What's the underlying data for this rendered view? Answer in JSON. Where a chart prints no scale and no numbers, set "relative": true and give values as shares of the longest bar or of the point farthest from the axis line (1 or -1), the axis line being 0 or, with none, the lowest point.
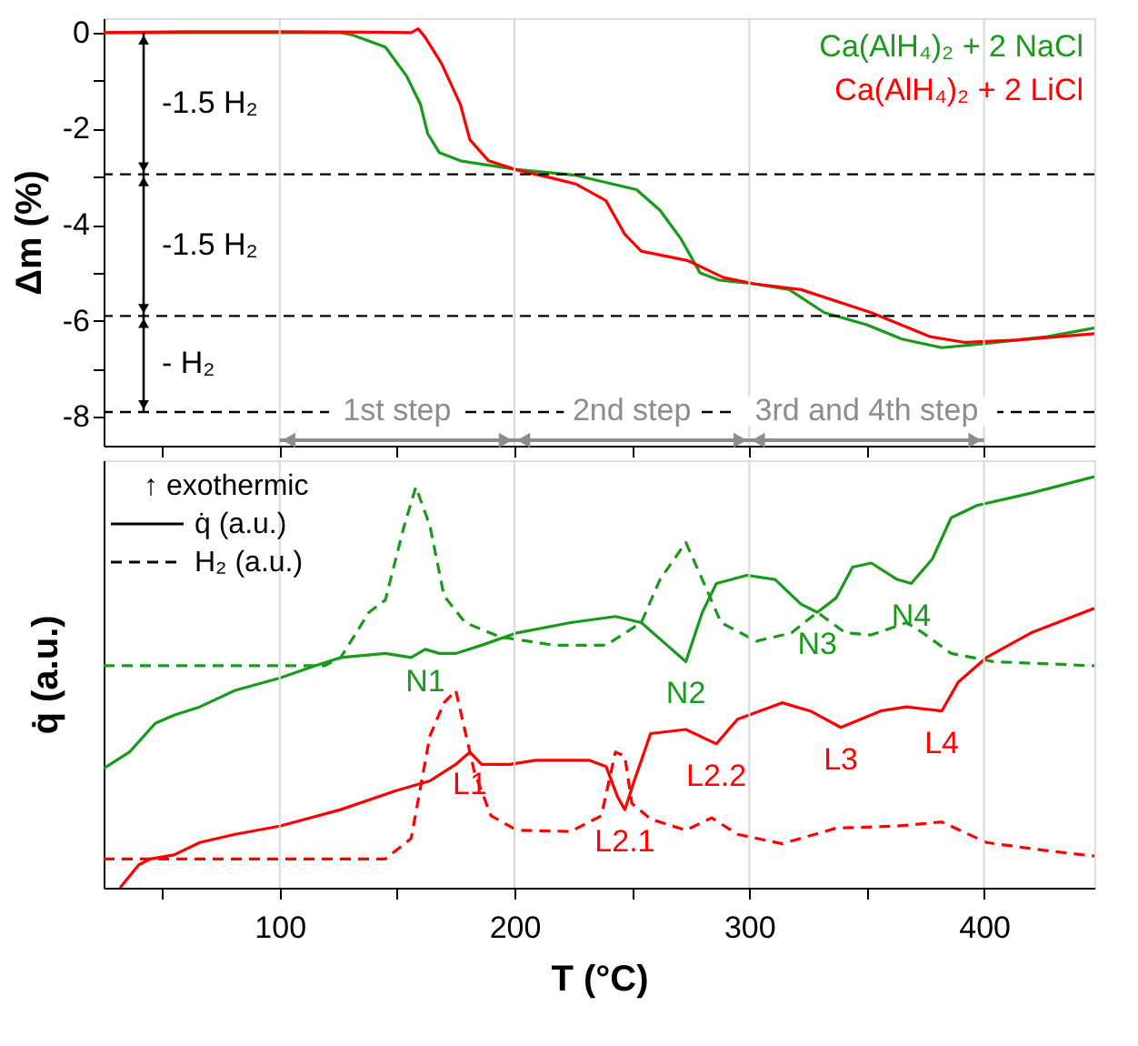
{
  "chart_data": [
    {
      "type": "line",
      "ylabel": "Δm (%)",
      "xlim": [
        25,
        447
      ],
      "xticks": [
        {
          "value": 50,
          "label": null
        },
        100,
        {
          "value": 150,
          "label": null
        },
        200,
        {
          "value": 250,
          "label": null
        },
        300,
        {
          "value": 350,
          "label": null
        },
        400
      ],
      "ylim": [
        -8.6,
        0.3
      ],
      "yticks": [
        0,
        {
          "value": -1,
          "label": null
        },
        -2,
        {
          "value": -3,
          "label": null
        },
        -4,
        {
          "value": -5,
          "label": null
        },
        -6,
        {
          "value": -7,
          "label": null
        },
        -8
      ],
      "tick_labels": "y",
      "grid": "x",
      "legend": "top right",
      "series": [
        {
          "name": "Ca(AlH₄)₂ + 2 NaCl",
          "color": "#1a9a1a",
          "line_style": "solid",
          "x": [
            25,
            100,
            126,
            131,
            145,
            154,
            160,
            163,
            168,
            177,
            201,
            226,
            252,
            262,
            271,
            279,
            287,
            302,
            317,
            332,
            350,
            365,
            382,
            399,
            427,
            447
          ],
          "values": [
            0,
            0,
            0,
            -0.05,
            -0.3,
            -0.9,
            -1.5,
            -2.1,
            -2.5,
            -2.67,
            -2.85,
            -2.97,
            -3.27,
            -3.7,
            -4.3,
            -5.0,
            -5.15,
            -5.23,
            -5.35,
            -5.83,
            -6.08,
            -6.38,
            -6.56,
            -6.48,
            -6.33,
            -6.15
          ]
        },
        {
          "name": "Ca(AlH₄)₂ + 2 LiCl",
          "color": "#ff0000",
          "line_style": "solid",
          "x": [
            25,
            60,
            100,
            140,
            156,
            159,
            162,
            169,
            177,
            181,
            189,
            201,
            217,
            226,
            239,
            247,
            254,
            274,
            289,
            302,
            322,
            352,
            377,
            392,
            414,
            447
          ],
          "values": [
            0,
            0.02,
            0.02,
            0.01,
            0,
            0.08,
            -0.1,
            -0.65,
            -1.5,
            -2.23,
            -2.67,
            -2.86,
            -3.04,
            -3.15,
            -3.5,
            -4.2,
            -4.55,
            -4.75,
            -5.1,
            -5.23,
            -5.35,
            -5.83,
            -6.33,
            -6.45,
            -6.4,
            -6.27
          ]
        }
      ],
      "ref_lines": [
        {
          "axis": "y",
          "value": -2.95,
          "color": "#000000",
          "line_style": "dashed"
        },
        {
          "axis": "y",
          "value": -5.9,
          "color": "#000000",
          "line_style": "dashed"
        },
        {
          "axis": "y",
          "value": -7.9,
          "color": "#000000",
          "line_style": "dashed"
        }
      ],
      "annotations": [
        "-1.5 H₂",
        "-1.5 H₂",
        "- H₂",
        "1st step",
        "2nd step",
        "3rd and 4th step"
      ]
    },
    {
      "type": "line",
      "relative": true,
      "xlabel": "T (°C)",
      "ylabel": "q̇ (a.u.)",
      "xlim": [
        25,
        447
      ],
      "xticks": [
        {
          "value": 50,
          "label": null
        },
        100,
        {
          "value": 150,
          "label": null
        },
        200,
        {
          "value": 250,
          "label": null
        },
        300,
        {
          "value": 350,
          "label": null
        },
        400
      ],
      "tick_labels": "x",
      "grid": "x",
      "series": [
        {
          "color": "#1a9a1a",
          "line_style": "solid",
          "x": [
            25,
            36,
            47,
            55,
            66,
            81,
            100,
            115,
            126,
            145,
            156,
            162,
            168,
            175,
            186,
            201,
            224,
            243,
            254,
            265,
            273,
            280,
            286,
            299,
            311,
            322,
            329,
            337,
            344,
            352,
            363,
            369,
            378,
            386,
            397,
            420,
            447
          ],
          "values": [
            0.29,
            0.33,
            0.4,
            0.42,
            0.44,
            0.48,
            0.51,
            0.54,
            0.56,
            0.57,
            0.56,
            0.58,
            0.57,
            0.57,
            0.59,
            0.62,
            0.645,
            0.66,
            0.645,
            0.59,
            0.55,
            0.67,
            0.74,
            0.76,
            0.75,
            0.69,
            0.67,
            0.705,
            0.78,
            0.79,
            0.75,
            0.74,
            0.8,
            0.9,
            0.93,
            0.96,
            1.0
          ]
        },
        {
          "color": "#1a9a1a",
          "line_style": "dashed",
          "x": [
            25,
            119,
            126,
            138,
            145,
            153,
            158,
            164,
            170,
            179,
            194,
            217,
            239,
            254,
            262,
            273,
            280,
            288,
            303,
            318,
            329,
            341,
            352,
            367,
            374,
            386,
            404,
            447
          ],
          "values": [
            0.54,
            0.54,
            0.56,
            0.67,
            0.7,
            0.88,
            0.975,
            0.88,
            0.71,
            0.645,
            0.61,
            0.59,
            0.59,
            0.645,
            0.75,
            0.84,
            0.75,
            0.645,
            0.6,
            0.62,
            0.67,
            0.62,
            0.615,
            0.645,
            0.62,
            0.57,
            0.55,
            0.54
          ]
        },
        {
          "color": "#ff0000",
          "line_style": "solid",
          "x": [
            32,
            40,
            45,
            55,
            66,
            81,
            100,
            126,
            149,
            164,
            175,
            181,
            186,
            198,
            209,
            232,
            239,
            244,
            247,
            251,
            258,
            273,
            286,
            295,
            314,
            326,
            339,
            356,
            367,
            382,
            389,
            401,
            420,
            447
          ],
          "values": [
            0,
            0.056,
            0.07,
            0.08,
            0.11,
            0.13,
            0.15,
            0.19,
            0.235,
            0.26,
            0.3,
            0.33,
            0.3,
            0.3,
            0.31,
            0.31,
            0.295,
            0.22,
            0.19,
            0.26,
            0.375,
            0.385,
            0.35,
            0.41,
            0.45,
            0.43,
            0.39,
            0.43,
            0.44,
            0.43,
            0.5,
            0.56,
            0.62,
            0.68
          ]
        },
        {
          "color": "#ff0000",
          "line_style": "dashed",
          "x": [
            25,
            145,
            156,
            164,
            170,
            175,
            183,
            190,
            201,
            224,
            237,
            243,
            247,
            250,
            258,
            273,
            284,
            295,
            314,
            337,
            363,
            382,
            401,
            427,
            447
          ],
          "values": [
            0.07,
            0.07,
            0.12,
            0.37,
            0.45,
            0.48,
            0.28,
            0.175,
            0.14,
            0.137,
            0.175,
            0.33,
            0.32,
            0.205,
            0.167,
            0.14,
            0.17,
            0.13,
            0.107,
            0.145,
            0.15,
            0.16,
            0.11,
            0.09,
            0.077
          ]
        }
      ],
      "annotations": [
        "↑ exothermic",
        "q̇ (a.u.)",
        "H₂ (a.u.)",
        {
          "text": "N1",
          "x": 162,
          "y": 0.58
        },
        {
          "text": "N2",
          "x": 273,
          "y": 0.55
        },
        {
          "text": "N3",
          "x": 329,
          "y": 0.67
        },
        {
          "text": "N4",
          "x": 369,
          "y": 0.74
        },
        {
          "text": "L1",
          "x": 181,
          "y": 0.33
        },
        {
          "text": "L2.1",
          "x": 247,
          "y": 0.19
        },
        {
          "text": "L2.2",
          "x": 286,
          "y": 0.35
        },
        {
          "text": "L3",
          "x": 339,
          "y": 0.39
        },
        {
          "text": "L4",
          "x": 382,
          "y": 0.43
        }
      ]
    }
  ]
}
